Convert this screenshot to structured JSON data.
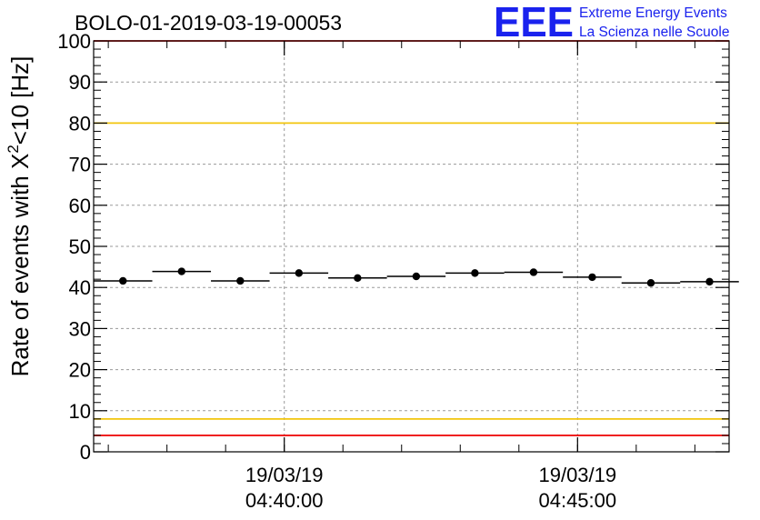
{
  "chart_data": {
    "type": "scatter",
    "title": "BOLO-01-2019-03-19-00053",
    "ylabel_prefix": "Rate of events with X",
    "ylabel_sup": "2",
    "ylabel_suffix": "<10 [Hz]",
    "xlabel": "",
    "ylim": [
      0,
      100
    ],
    "yticks": [
      0,
      10,
      20,
      30,
      40,
      50,
      60,
      70,
      80,
      90,
      100
    ],
    "xlim": [
      "04:36:45",
      "04:47:35"
    ],
    "xticks": [
      {
        "time": "04:40:00",
        "date": "19/03/19",
        "clock": "04:40:00"
      },
      {
        "time": "04:45:00",
        "date": "19/03/19",
        "clock": "04:45:00"
      }
    ],
    "grid": true,
    "reference_lines": [
      {
        "y": 100,
        "color": "#ee1111"
      },
      {
        "y": 80,
        "color": "#f2c50c"
      },
      {
        "y": 8,
        "color": "#f2c50c"
      },
      {
        "y": 4,
        "color": "#ee1111"
      }
    ],
    "bin_width_seconds": 60,
    "series": [
      {
        "color": "#000000",
        "x": [
          "04:37:15",
          "04:38:15",
          "04:39:15",
          "04:40:15",
          "04:41:15",
          "04:42:15",
          "04:43:15",
          "04:44:15",
          "04:45:15",
          "04:46:15",
          "04:47:15"
        ],
        "values": [
          41.6,
          43.9,
          41.6,
          43.5,
          42.3,
          42.7,
          43.5,
          43.7,
          42.5,
          41.1,
          41.4
        ]
      }
    ]
  },
  "logo": {
    "mark": "EEE",
    "line1": "Extreme Energy Events",
    "line2": "La Scienza nelle Scuole"
  }
}
